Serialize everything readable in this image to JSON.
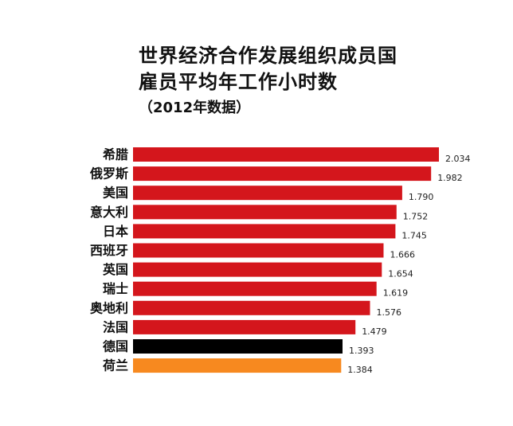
{
  "chart_data": {
    "type": "bar",
    "orientation": "horizontal",
    "title_lines": [
      "世界经济合作发展组织成员国",
      "雇员平均年工作小时数"
    ],
    "subtitle": "（2012年数据）",
    "categories": [
      "希腊",
      "俄罗斯",
      "美国",
      "意大利",
      "日本",
      "西班牙",
      "英国",
      "瑞士",
      "奥地利",
      "法国",
      "德国",
      "荷兰"
    ],
    "values": [
      2034,
      1982,
      1790,
      1752,
      1745,
      1666,
      1654,
      1619,
      1576,
      1479,
      1393,
      1384
    ],
    "value_labels": [
      "2.034",
      "1.982",
      "1.790",
      "1.752",
      "1.745",
      "1.666",
      "1.654",
      "1.619",
      "1.576",
      "1.479",
      "1.393",
      "1.384"
    ],
    "bar_colors": [
      "#d4161c",
      "#d4161c",
      "#d4161c",
      "#d4161c",
      "#d4161c",
      "#d4161c",
      "#d4161c",
      "#d4161c",
      "#d4161c",
      "#d4161c",
      "#000000",
      "#f7891f"
    ],
    "xlim": [
      0,
      2034
    ],
    "grid": false,
    "legend": "none"
  }
}
